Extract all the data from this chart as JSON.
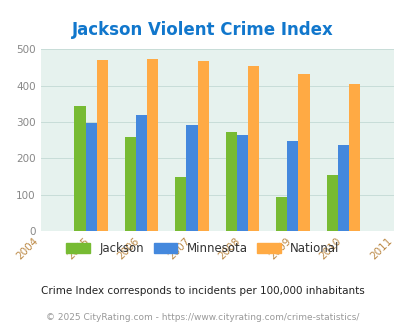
{
  "title": "Jackson Violent Crime Index",
  "years": [
    2004,
    2005,
    2006,
    2007,
    2008,
    2009,
    2010,
    2011
  ],
  "bar_years": [
    2005,
    2006,
    2007,
    2008,
    2009,
    2010
  ],
  "jackson": [
    345,
    260,
    148,
    272,
    95,
    153
  ],
  "minnesota": [
    298,
    320,
    293,
    265,
    248,
    238
  ],
  "national": [
    470,
    473,
    467,
    455,
    432,
    405
  ],
  "jackson_color": "#77bb33",
  "minnesota_color": "#4488dd",
  "national_color": "#ffaa44",
  "bg_color": "#e6f2ee",
  "title_color": "#1177cc",
  "tick_color": "#bb8844",
  "ylim": [
    0,
    500
  ],
  "yticks": [
    0,
    100,
    200,
    300,
    400,
    500
  ],
  "legend_labels": [
    "Jackson",
    "Minnesota",
    "National"
  ],
  "footnote1": "Crime Index corresponds to incidents per 100,000 inhabitants",
  "footnote2": "© 2025 CityRating.com - https://www.cityrating.com/crime-statistics/",
  "bar_width": 0.22,
  "grid_color": "#c8ddd8"
}
